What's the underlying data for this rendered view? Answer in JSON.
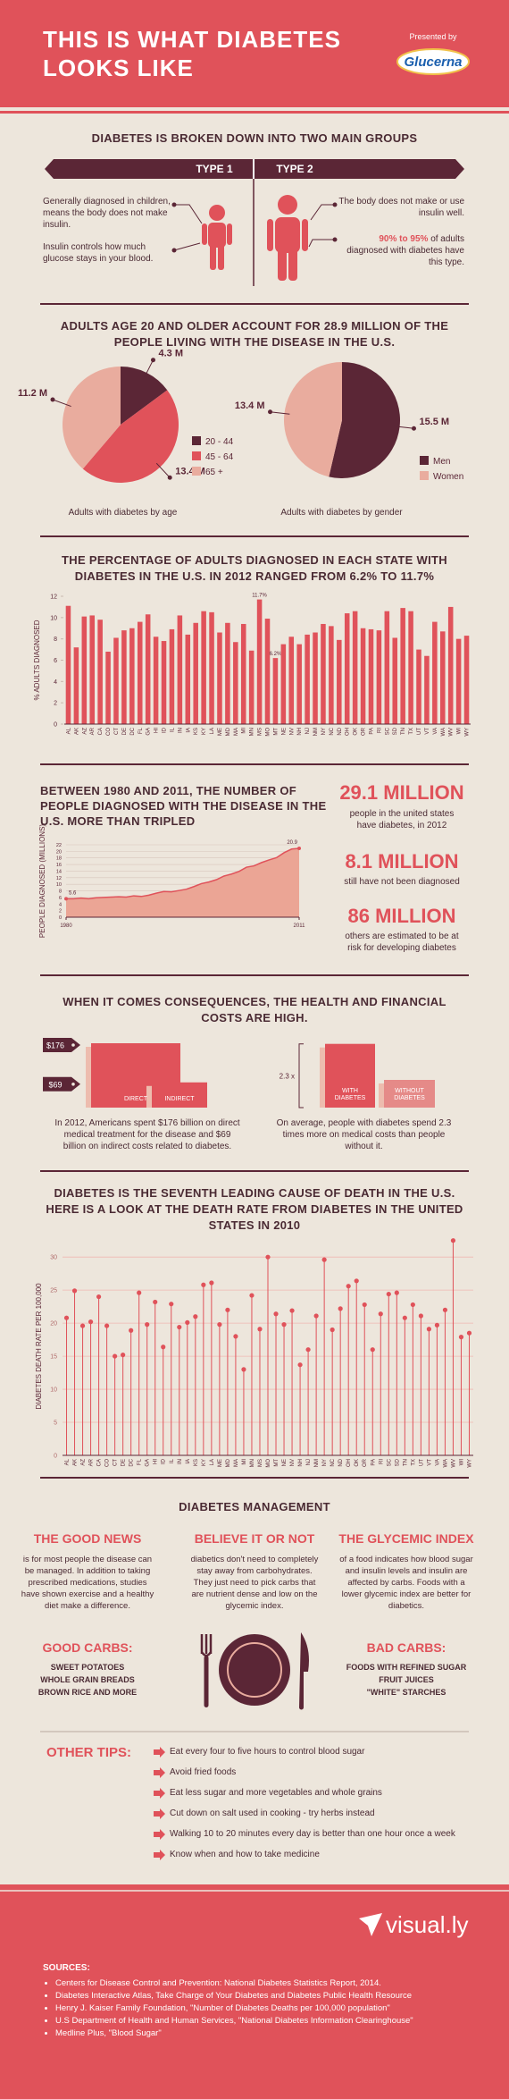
{
  "header": {
    "title": "THIS IS WHAT DIABETES LOOKS LIKE",
    "presented_by": "Presented by",
    "brand": "Glucerna"
  },
  "types": {
    "title": "DIABETES IS BROKEN DOWN INTO TWO MAIN GROUPS",
    "type1": {
      "label": "TYPE 1",
      "text": [
        "Generally diagnosed in children, means the body does not make insulin.",
        "Insulin controls how much glucose stays in your blood."
      ]
    },
    "type2": {
      "label": "TYPE 2",
      "text": [
        "The body does not make or use insulin well."
      ],
      "highlight": "90% to 95%",
      "highlight_rest": "of adults diagnosed with diabetes have this type."
    }
  },
  "population_title": "ADULTS AGE 20 AND OLDER ACCOUNT FOR 28.9 MILLION OF THE PEOPLE LIVING WITH THE DISEASE IN THE U.S.",
  "chart_data": [
    {
      "type": "pie",
      "caption": "Adults with diabetes by age",
      "categories": [
        "20 - 44",
        "45 - 64",
        "65 +"
      ],
      "values": [
        4.3,
        13.4,
        11.2
      ],
      "value_labels": [
        "4.3 M",
        "13.4 M",
        "11.2 M"
      ],
      "colors": [
        "#5b2636",
        "#e0525a",
        "#e9ac9e"
      ]
    },
    {
      "type": "pie",
      "caption": "Adults with diabetes by gender",
      "categories": [
        "Men",
        "Women"
      ],
      "values": [
        15.5,
        13.4
      ],
      "value_labels": [
        "15.5 M",
        "13.4 M"
      ],
      "colors": [
        "#5b2636",
        "#e9ac9e"
      ]
    },
    {
      "type": "bar",
      "title": "THE PERCENTAGE OF ADULTS DIAGNOSED IN EACH STATE WITH DIABETES IN THE U.S. IN 2012 RANGED FROM 6.2% TO 11.7%",
      "y_label": "% ADULTS DIAGNOSED",
      "categories": [
        "AL",
        "AK",
        "AZ",
        "AR",
        "CA",
        "CO",
        "CT",
        "DE",
        "DC",
        "FL",
        "GA",
        "HI",
        "ID",
        "IL",
        "IN",
        "IA",
        "KS",
        "KY",
        "LA",
        "ME",
        "MD",
        "MA",
        "MI",
        "MN",
        "MS",
        "MO",
        "MT",
        "NE",
        "NV",
        "NH",
        "NJ",
        "NM",
        "NY",
        "NC",
        "ND",
        "OH",
        "OK",
        "OR",
        "PA",
        "RI",
        "SC",
        "SD",
        "TN",
        "TX",
        "UT",
        "VT",
        "VA",
        "WA",
        "WV",
        "WI",
        "WY"
      ],
      "values": [
        11.1,
        7.2,
        10.1,
        10.2,
        9.8,
        6.8,
        8.1,
        8.8,
        9.0,
        9.6,
        10.3,
        8.2,
        7.8,
        8.9,
        10.2,
        8.4,
        9.5,
        10.6,
        10.5,
        8.6,
        9.5,
        7.7,
        9.4,
        6.9,
        11.7,
        9.9,
        6.2,
        7.5,
        8.2,
        7.5,
        8.4,
        8.6,
        9.4,
        9.2,
        7.9,
        10.4,
        10.6,
        9.0,
        8.9,
        8.8,
        10.6,
        8.1,
        10.9,
        10.6,
        7.0,
        6.4,
        9.6,
        8.7,
        11.0,
        8.0,
        8.3
      ],
      "value_labels": [
        null,
        null,
        null,
        null,
        null,
        null,
        null,
        null,
        null,
        null,
        null,
        null,
        null,
        null,
        null,
        null,
        null,
        null,
        null,
        null,
        null,
        null,
        null,
        null,
        "11.7%",
        null,
        "6.2%",
        null,
        null,
        null,
        null,
        null,
        null,
        null,
        null,
        null,
        null,
        null,
        null,
        null,
        null,
        null,
        null,
        null,
        null,
        null,
        null,
        null,
        null,
        null,
        null
      ],
      "color": "#e0525a",
      "ylim": [
        0,
        12
      ],
      "yticks": [
        0,
        2,
        4,
        6,
        8,
        10,
        12
      ],
      "grid": false
    },
    {
      "type": "area",
      "title": "BETWEEN 1980 AND 2011, THE NUMBER OF PEOPLE DIAGNOSED WITH THE DISEASE IN THE U.S. MORE THAN TRIPLED",
      "y_label": "PEOPLE DIAGNOSED (MILLIONS)",
      "x": [
        1980,
        1981,
        1982,
        1983,
        1984,
        1985,
        1986,
        1987,
        1988,
        1989,
        1990,
        1991,
        1992,
        1993,
        1994,
        1995,
        1996,
        1997,
        1998,
        1999,
        2000,
        2001,
        2002,
        2003,
        2004,
        2005,
        2006,
        2007,
        2008,
        2009,
        2010,
        2011
      ],
      "values": [
        5.6,
        5.6,
        5.8,
        5.6,
        5.9,
        6.0,
        6.1,
        6.2,
        6.1,
        6.5,
        6.3,
        6.7,
        7.3,
        7.8,
        7.7,
        8.1,
        8.5,
        9.3,
        10.2,
        10.7,
        11.4,
        12.5,
        13.1,
        13.9,
        15.2,
        15.6,
        16.6,
        17.4,
        18.1,
        19.6,
        20.7,
        20.9
      ],
      "color": "#e0525a",
      "fill": "#eba595",
      "xlim": [
        1980,
        2011
      ],
      "xticks": [
        1980,
        2011
      ],
      "ylim": [
        0,
        22
      ],
      "yticks": [
        0,
        2,
        4,
        6,
        8,
        10,
        12,
        14,
        16,
        18,
        20,
        22
      ],
      "grid": true
    },
    {
      "type": "lollipop",
      "title": "DIABETES IS THE SEVENTH LEADING CAUSE OF DEATH IN THE U.S. HERE IS A LOOK AT THE DEATH RATE FROM DIABETES IN THE UNITED STATES IN 2010",
      "y_label": "DIABETES DEATH RATE PER 100,000",
      "categories": [
        "AL",
        "AK",
        "AZ",
        "AR",
        "CA",
        "CO",
        "CT",
        "DE",
        "DC",
        "FL",
        "GA",
        "HI",
        "ID",
        "IL",
        "IN",
        "IA",
        "KS",
        "KY",
        "LA",
        "ME",
        "MD",
        "MA",
        "MI",
        "MN",
        "MS",
        "MO",
        "MT",
        "NE",
        "NV",
        "NH",
        "NJ",
        "NM",
        "NY",
        "NC",
        "ND",
        "OH",
        "OK",
        "OR",
        "PA",
        "RI",
        "SC",
        "SD",
        "TN",
        "TX",
        "UT",
        "VT",
        "VA",
        "WA",
        "WV",
        "WI",
        "WY"
      ],
      "values": [
        20.8,
        24.9,
        19.6,
        20.2,
        24,
        19.6,
        15,
        15.2,
        18.9,
        24.6,
        19.8,
        23.2,
        16.4,
        22.9,
        19.4,
        20.1,
        21,
        25.8,
        26.1,
        19.8,
        22,
        18,
        13,
        24.2,
        19.1,
        30,
        21.4,
        19.8,
        21.9,
        13.7,
        16,
        21.1,
        29.6,
        19,
        22.2,
        25.6,
        26.4,
        22.8,
        16,
        21.4,
        24.4,
        24.6,
        20.8,
        22.8,
        21.1,
        19.1,
        19.7,
        22,
        32.5,
        17.9,
        18.5
      ],
      "color": "#e0525a",
      "ylim": [
        0,
        33
      ],
      "yticks": [
        0,
        5,
        10,
        15,
        20,
        25,
        30
      ],
      "grid": true
    }
  ],
  "stats": [
    {
      "value": "29.1 MILLION",
      "text": "people in the united states have diabetes, in 2012"
    },
    {
      "value": "8.1 MILLION",
      "text": "still have not been diagnosed"
    },
    {
      "value": "86 MILLION",
      "text": "others are estimated to be at risk for developing diabetes"
    }
  ],
  "costs": {
    "title": "WHEN IT COMES CONSEQUENCES, THE HEALTH AND FINANCIAL COSTS ARE HIGH.",
    "spending": {
      "categories": [
        "DIRECT",
        "INDIRECT"
      ],
      "values": [
        176,
        69
      ],
      "value_labels": [
        "$176",
        "$69"
      ],
      "text": "In 2012, Americans spent $176 billion on direct medical treatment for the disease and $69 billion on indirect costs related to diabetes."
    },
    "comparison": {
      "categories": [
        "WITH DIABETES",
        "WITHOUT DIABETES"
      ],
      "ratio": 2.3,
      "ratio_label": "2.3 x",
      "text": "On average, people with diabetes spend 2.3 times more on medical costs than people without it."
    }
  },
  "management": {
    "title": "DIABETES MANAGEMENT",
    "columns": [
      {
        "heading": "THE GOOD NEWS",
        "text": "is for most people the disease can be managed. In addition to taking prescribed medications, studies have shown exercise and a healthy diet make a difference."
      },
      {
        "heading": "BELIEVE IT OR NOT",
        "text": "diabetics don't need to completely stay away from carbohydrates. They just need to pick carbs that are nutrient dense and low on the glycemic index."
      },
      {
        "heading": "THE GLYCEMIC INDEX",
        "text": "of a food indicates how blood sugar and insulin levels and insulin are affected by carbs. Foods with a lower glycemic index are better for diabetics."
      }
    ],
    "good_carbs": {
      "heading": "GOOD CARBS:",
      "items": [
        "SWEET POTATOES",
        "WHOLE GRAIN BREADS",
        "BROWN RICE AND MORE"
      ]
    },
    "bad_carbs": {
      "heading": "BAD CARBS:",
      "items": [
        "FOODS WITH REFINED SUGAR",
        "FRUIT JUICES",
        "\"WHITE\" STARCHES"
      ]
    }
  },
  "tips": {
    "heading": "OTHER TIPS:",
    "items": [
      "Eat every four to five hours to control blood sugar",
      "Avoid fried foods",
      "Eat less sugar and more vegetables and whole grains",
      "Cut down on salt used in cooking - try herbs instead",
      "Walking 10 to 20 minutes every day is better than one hour once a week",
      "Know when and how to take medicine"
    ]
  },
  "footer": {
    "logo": "visual.ly",
    "sources_heading": "SOURCES:",
    "sources": [
      "Centers for Disease Control and Prevention: National Diabetes Statistics Report, 2014.",
      "Diabetes Interactive Atlas, Take Charge of Your Diabetes and Diabetes Public Health Resource",
      "Henry J. Kaiser Family Foundation, \"Number of Diabetes Deaths per 100,000 population\"",
      "U.S Department of Health and Human Services, \"National Diabetes Information Clearinghouse\"",
      "Medline Plus, \"Blood Sugar\""
    ]
  }
}
